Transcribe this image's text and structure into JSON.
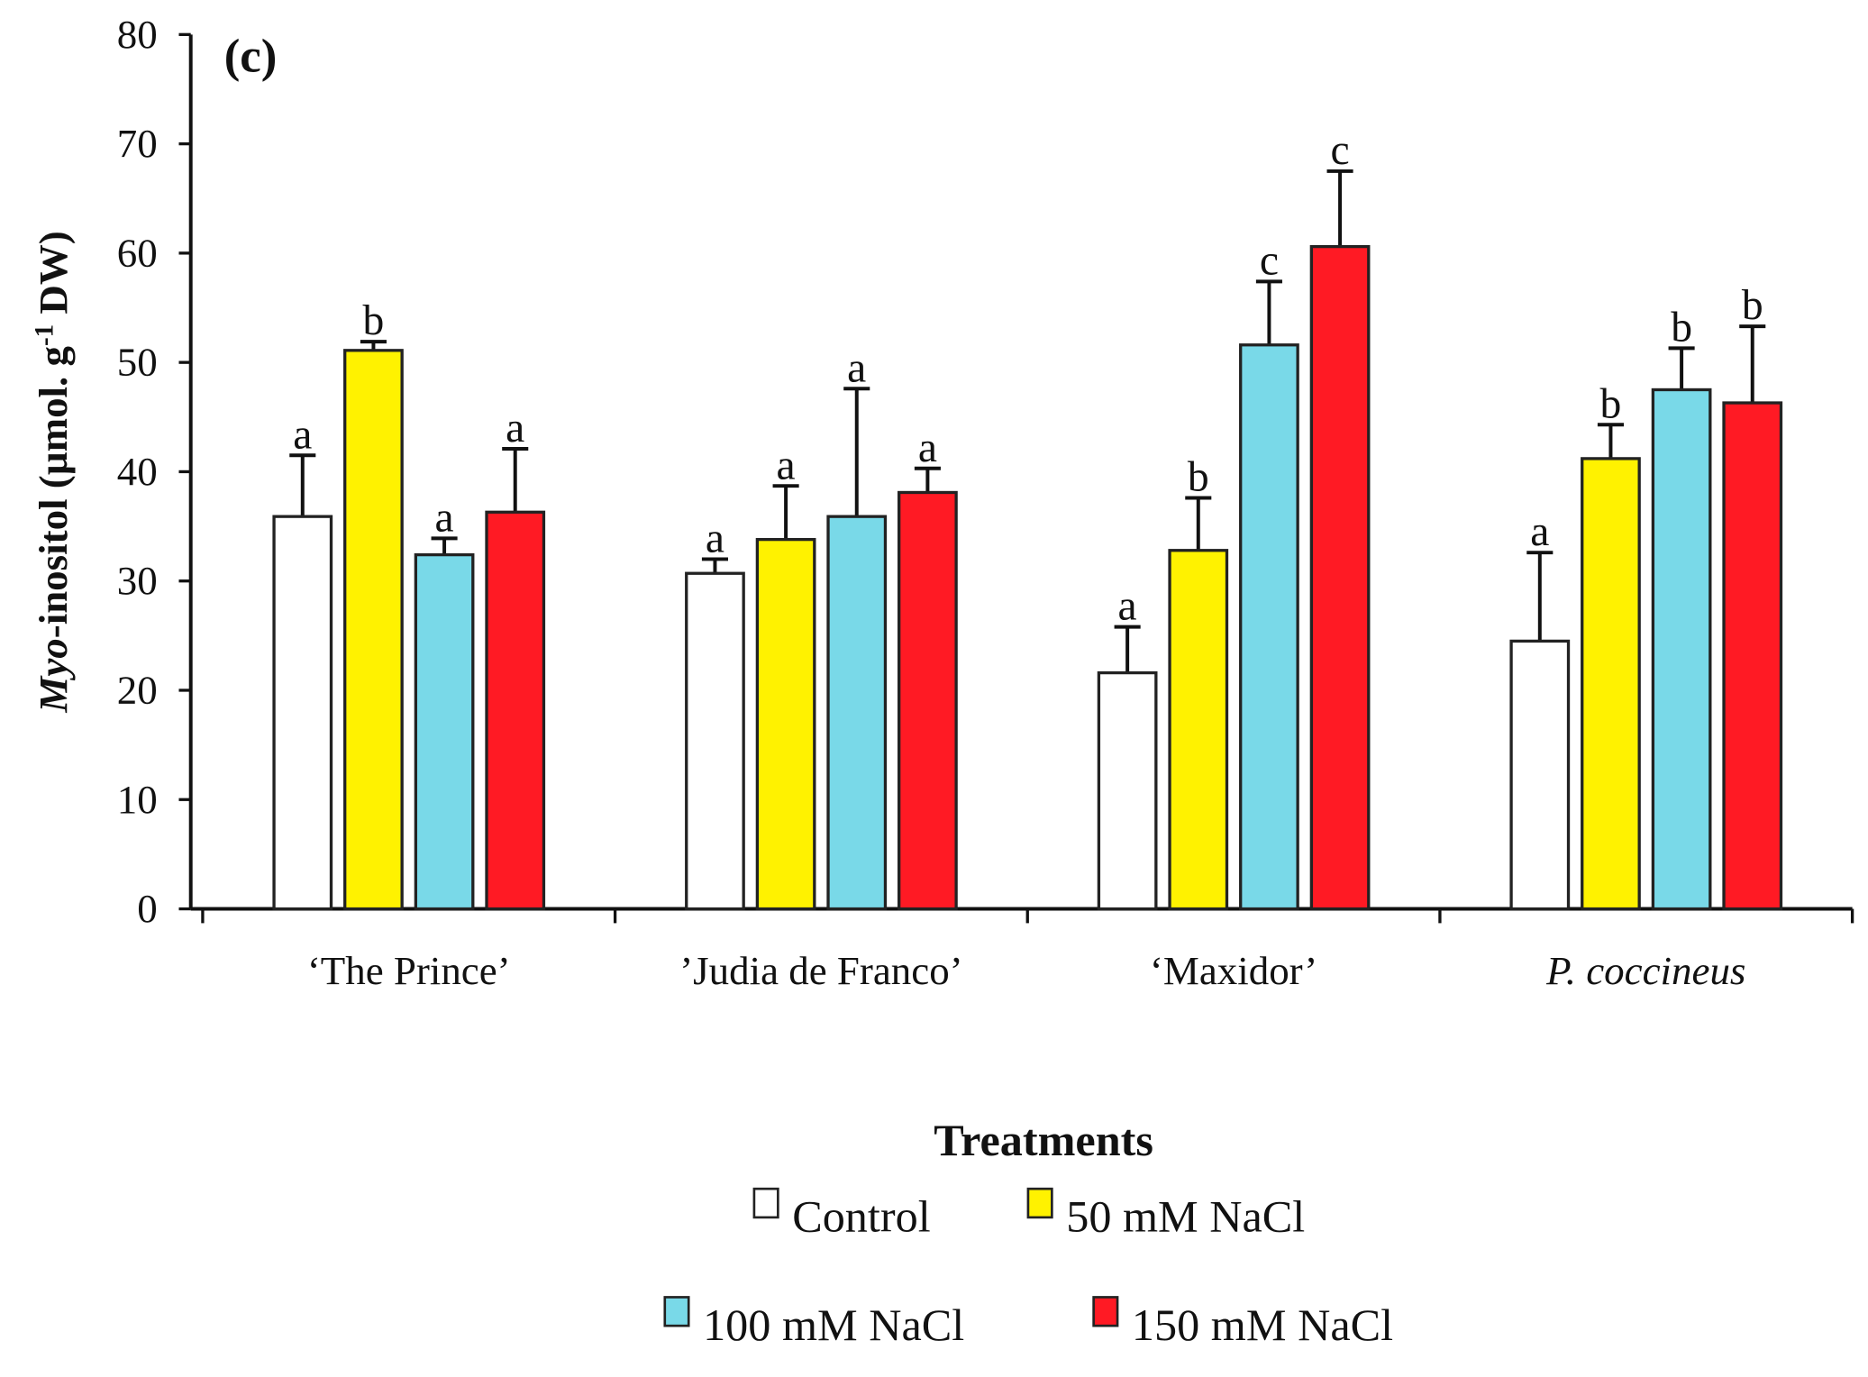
{
  "chart_data": {
    "type": "bar",
    "panel_label": "(c)",
    "ylabel_italic": "Myo",
    "ylabel_rest": "-inositol (µmol. g",
    "ylabel_sup": "-1",
    "ylabel_end": " DW)",
    "xlabel": "Treatments",
    "ylim": [
      0,
      80
    ],
    "yticks": [
      "0",
      "10",
      "20",
      "30",
      "40",
      "50",
      "60",
      "70",
      "80"
    ],
    "categories": [
      "‘The Prince’",
      "’Judia de Franco’",
      "‘Maxidor’",
      "P. coccineus"
    ],
    "legend_position": "bottom",
    "series": [
      {
        "name": "Control",
        "color": "#ffffff",
        "values": [
          35.9,
          30.7,
          21.6,
          24.5
        ],
        "error_upper": [
          41.5,
          32.0,
          25.8,
          32.6
        ],
        "letters": [
          "a",
          "a",
          "a",
          "a"
        ]
      },
      {
        "name": "50 mM NaCl",
        "color": "#fff200",
        "values": [
          51.1,
          33.8,
          32.8,
          41.2
        ],
        "error_upper": [
          51.9,
          38.7,
          37.6,
          44.3
        ],
        "letters": [
          "b",
          "a",
          "b",
          "b"
        ]
      },
      {
        "name": "100 mM NaCl",
        "color": "#79d9e8",
        "values": [
          32.4,
          35.9,
          51.6,
          47.5
        ],
        "error_upper": [
          33.9,
          47.6,
          57.4,
          51.3
        ],
        "letters": [
          "a",
          "a",
          "c",
          "b"
        ]
      },
      {
        "name": "150 mM NaCl",
        "color": "#ff1a24",
        "values": [
          36.3,
          38.1,
          60.6,
          46.3
        ],
        "error_upper": [
          42.1,
          40.3,
          67.5,
          53.3
        ],
        "letters": [
          "a",
          "a",
          "c",
          "b"
        ]
      }
    ]
  }
}
